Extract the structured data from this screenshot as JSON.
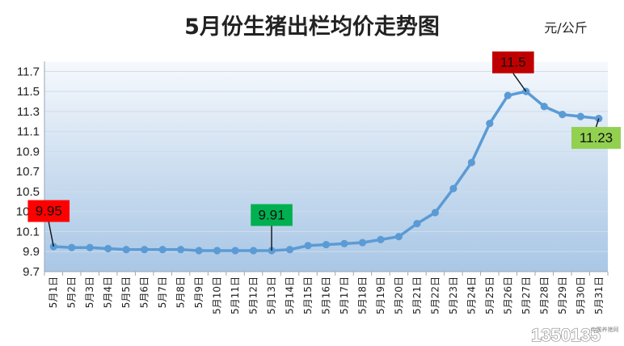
{
  "chart_data": {
    "type": "line",
    "title": "5月份生猪出栏均价走势图",
    "unit": "元/公斤",
    "categories": [
      "5月1日",
      "5月2日",
      "5月3日",
      "5月4日",
      "5月5日",
      "5月6日",
      "5月7日",
      "5月8日",
      "5月9日",
      "5月10日",
      "5月11日",
      "5月12日",
      "5月13日",
      "5月14日",
      "5月15日",
      "5月16日",
      "5月17日",
      "5月18日",
      "5月19日",
      "5月20日",
      "5月21日",
      "5月22日",
      "5月23日",
      "5月24日",
      "5月25日",
      "5月26日",
      "5月27日",
      "5月28日",
      "5月29日",
      "5月30日",
      "5月31日"
    ],
    "values": [
      9.95,
      9.94,
      9.94,
      9.93,
      9.92,
      9.92,
      9.92,
      9.92,
      9.91,
      9.91,
      9.91,
      9.91,
      9.91,
      9.92,
      9.96,
      9.97,
      9.98,
      9.99,
      10.02,
      10.05,
      10.18,
      10.29,
      10.53,
      10.79,
      11.18,
      11.46,
      11.5,
      11.35,
      11.27,
      11.25,
      11.23
    ],
    "ylim": [
      9.7,
      11.8
    ],
    "yticks": [
      "9.7",
      "9.9",
      "10.1",
      "10.3",
      "10.5",
      "10.7",
      "10.9",
      "11.1",
      "11.3",
      "11.5",
      "11.7"
    ],
    "line_color": "#5b9bd5",
    "annotations": [
      {
        "text": "9.95",
        "index": 0,
        "color": "#ff0000"
      },
      {
        "text": "9.91",
        "index": 12,
        "color": "#00b050"
      },
      {
        "text": "11.5",
        "index": 26,
        "color": "#c00000"
      },
      {
        "text": "11.23",
        "index": 30,
        "color": "#92d050"
      }
    ]
  },
  "watermark": {
    "brand": "1350135",
    "tagline": "中国养猪网"
  }
}
